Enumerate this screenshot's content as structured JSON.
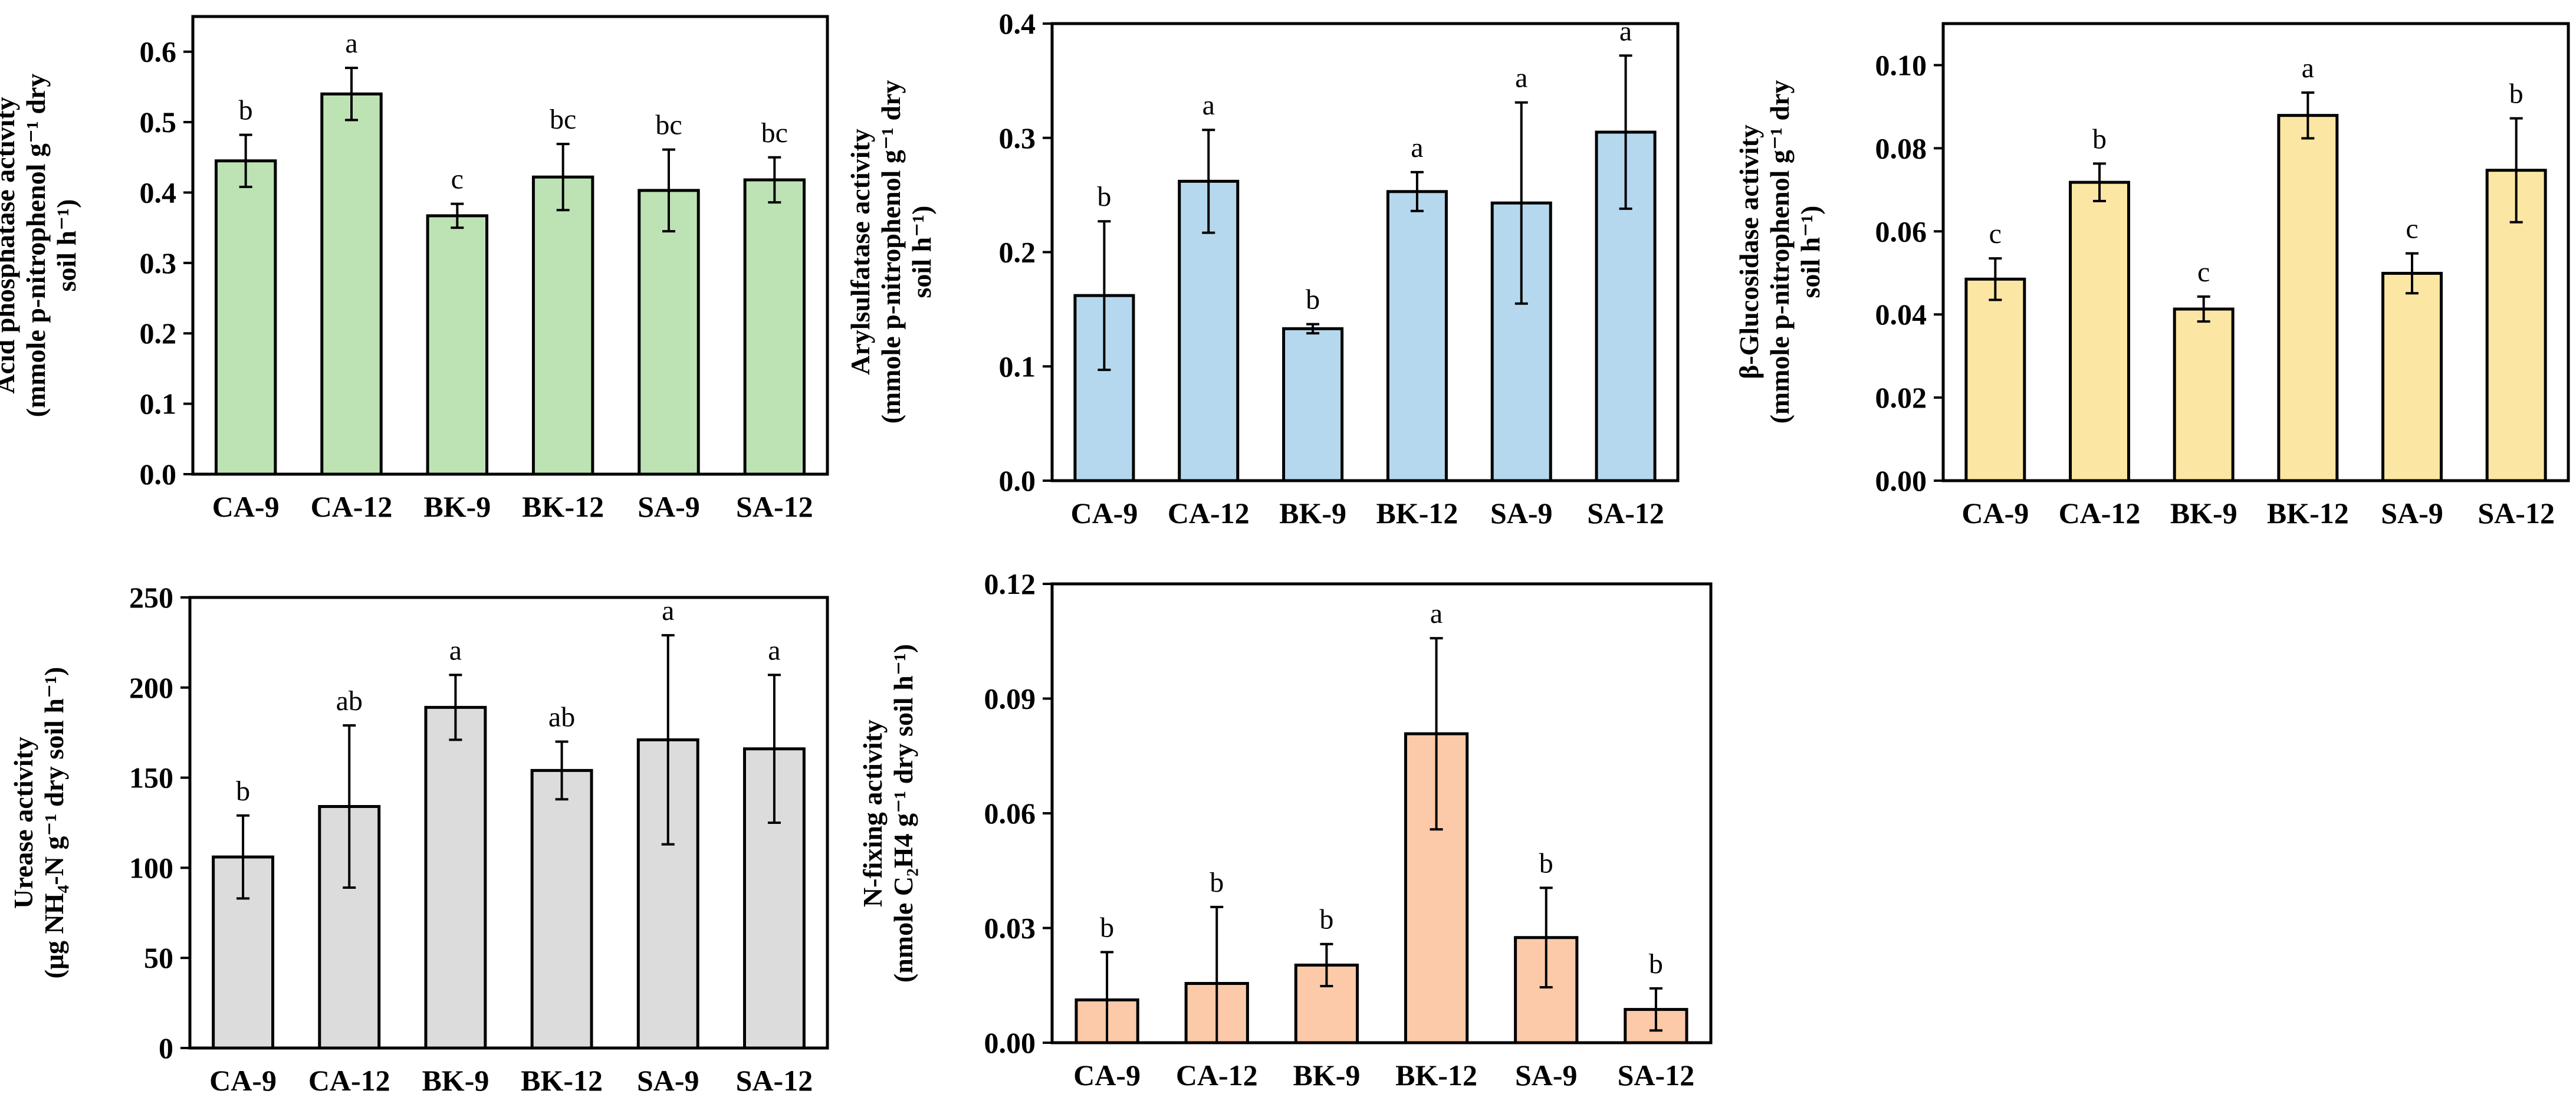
{
  "chart_data": [
    {
      "type": "bar",
      "id": "acid-phosphatase",
      "ylabel_lines": [
        "Acid phosphatase activity",
        "(mmole p-nitrophenol g⁻¹ dry",
        "soil h⁻¹)"
      ],
      "categories": [
        "CA-9",
        "CA-12",
        "BK-9",
        "BK-12",
        "SA-9",
        "SA-12"
      ],
      "values": [
        0.445,
        0.54,
        0.367,
        0.422,
        0.403,
        0.418
      ],
      "errors": [
        0.037,
        0.037,
        0.017,
        0.047,
        0.058,
        0.032
      ],
      "letters": [
        "b",
        "a",
        "c",
        "bc",
        "bc",
        "bc"
      ],
      "ylim": [
        0,
        0.65
      ],
      "yticks": [
        0.0,
        0.1,
        0.2,
        0.3,
        0.4,
        0.5,
        0.6
      ],
      "ytick_labels": [
        "0.0",
        "0.1",
        "0.2",
        "0.3",
        "0.4",
        "0.5",
        "0.6"
      ],
      "color": "#bde3b5"
    },
    {
      "type": "bar",
      "id": "arylsulfatase",
      "ylabel_lines": [
        "Arylsulfatase activity",
        "(mmole p-nitrophenol g⁻¹ dry",
        "soil h⁻¹)"
      ],
      "categories": [
        "CA-9",
        "CA-12",
        "BK-9",
        "BK-12",
        "SA-9",
        "SA-12"
      ],
      "values": [
        0.162,
        0.262,
        0.133,
        0.253,
        0.243,
        0.305
      ],
      "errors": [
        0.065,
        0.045,
        0.004,
        0.017,
        0.088,
        0.067
      ],
      "letters": [
        "b",
        "a",
        "b",
        "a",
        "a",
        "a"
      ],
      "ylim": [
        0,
        0.4
      ],
      "yticks": [
        0.0,
        0.1,
        0.2,
        0.3,
        0.4
      ],
      "ytick_labels": [
        "0.0",
        "0.1",
        "0.2",
        "0.3",
        "0.4"
      ],
      "color": "#b5d8ee"
    },
    {
      "type": "bar",
      "id": "beta-glucosidase",
      "ylabel_lines": [
        "β-Glucosidase activity",
        "(mmole p-nitrophenol g⁻¹ dry",
        "soil h⁻¹)"
      ],
      "categories": [
        "CA-9",
        "CA-12",
        "BK-9",
        "BK-12",
        "SA-9",
        "SA-12"
      ],
      "values": [
        0.0485,
        0.0718,
        0.0413,
        0.0879,
        0.0499,
        0.0747
      ],
      "errors": [
        0.005,
        0.0045,
        0.003,
        0.0055,
        0.0048,
        0.0125
      ],
      "letters": [
        "c",
        "b",
        "c",
        "a",
        "c",
        "b"
      ],
      "ylim": [
        0,
        0.11
      ],
      "yticks": [
        0.0,
        0.02,
        0.04,
        0.06,
        0.08,
        0.1
      ],
      "ytick_labels": [
        "0.00",
        "0.02",
        "0.04",
        "0.06",
        "0.08",
        "0.10"
      ],
      "color": "#fbe7a3"
    },
    {
      "type": "bar",
      "id": "urease",
      "ylabel_lines": [
        "Urease activity",
        "(μg NH₄-N g⁻¹ dry soil h⁻¹)"
      ],
      "categories": [
        "CA-9",
        "CA-12",
        "BK-9",
        "BK-12",
        "SA-9",
        "SA-12"
      ],
      "values": [
        106,
        134,
        189,
        154,
        171,
        166
      ],
      "errors": [
        23,
        45,
        18,
        16,
        58,
        41
      ],
      "letters": [
        "b",
        "ab",
        "a",
        "ab",
        "a",
        "a"
      ],
      "ylim": [
        0,
        250
      ],
      "yticks": [
        0,
        50,
        100,
        150,
        200,
        250
      ],
      "ytick_labels": [
        "0",
        "50",
        "100",
        "150",
        "200",
        "250"
      ],
      "color": "#dcdcdc"
    },
    {
      "type": "bar",
      "id": "n-fixing",
      "ylabel_lines": [
        "N-fixing activity",
        "(nmole C₂H4 g⁻¹ dry soil h⁻¹)"
      ],
      "categories": [
        "CA-9",
        "CA-12",
        "BK-9",
        "BK-12",
        "SA-9",
        "SA-12"
      ],
      "values": [
        0.0112,
        0.0155,
        0.0203,
        0.0808,
        0.0275,
        0.0087
      ],
      "errors": [
        0.0125,
        0.02,
        0.0055,
        0.025,
        0.013,
        0.0055
      ],
      "letters": [
        "b",
        "b",
        "b",
        "a",
        "b",
        "b"
      ],
      "ylim": [
        0,
        0.12
      ],
      "yticks": [
        0.0,
        0.03,
        0.06,
        0.09,
        0.12
      ],
      "ytick_labels": [
        "0.00",
        "0.03",
        "0.06",
        "0.09",
        "0.12"
      ],
      "color": "#fccaa8"
    }
  ]
}
